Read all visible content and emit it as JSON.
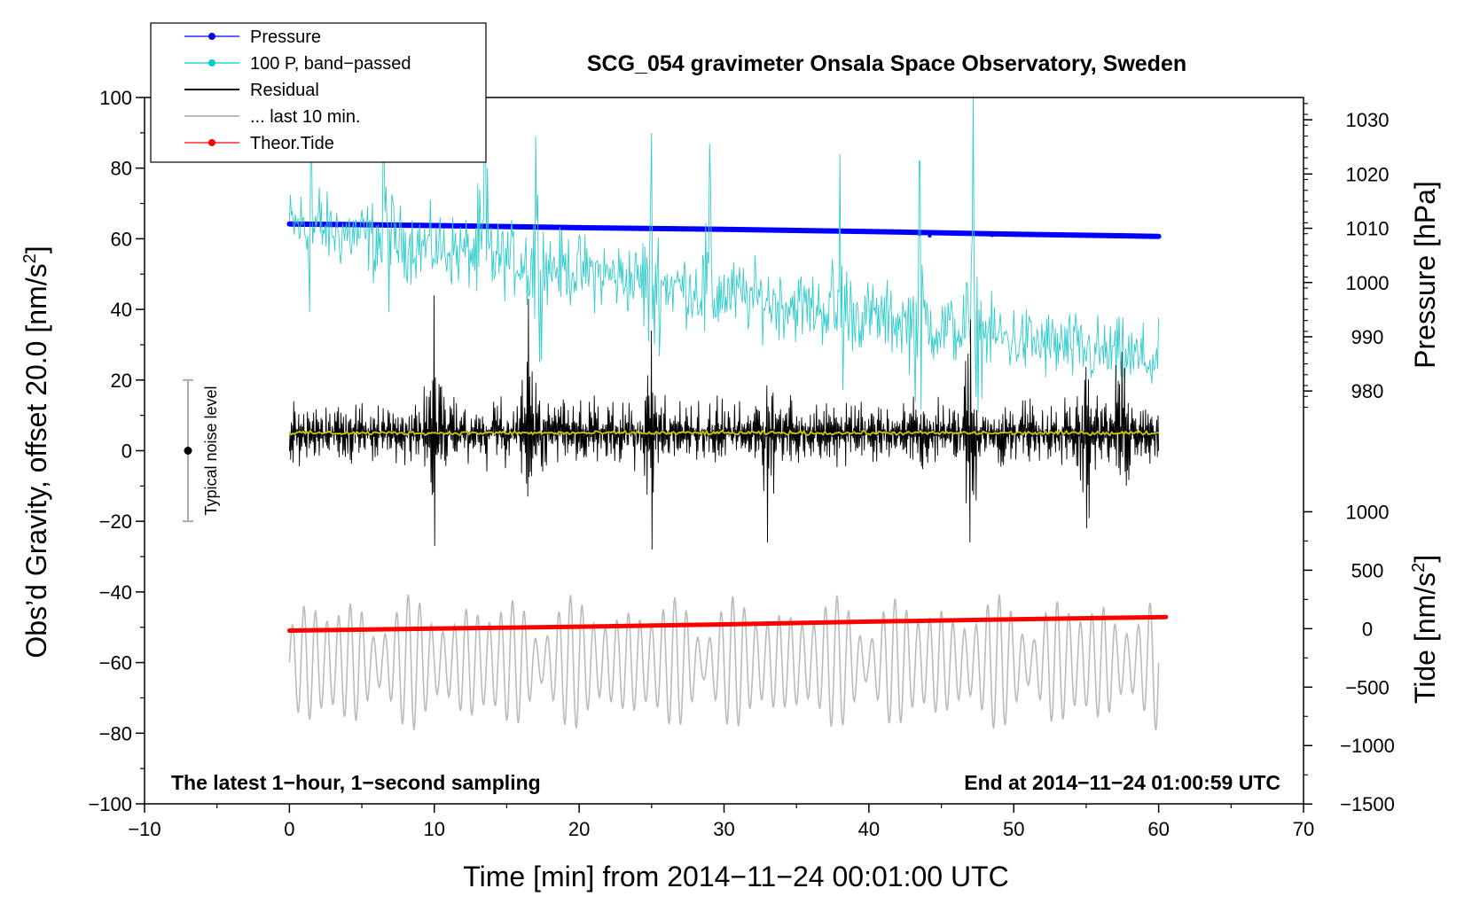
{
  "chart_data": {
    "type": "line",
    "title": "SCG_054 gravimeter Onsala Space Observatory, Sweden",
    "xlabel": "Time [min] from 2014−11−24 00:01:00 UTC",
    "ylabel_left": "Obs’d Gravity, offset 20.0 [nm/s",
    "ylabel_left_sup": "2",
    "ylabel_left_end": "]",
    "ylabel_right_top": "Pressure [hPa]",
    "ylabel_right_bottom": "Tide [nm/s",
    "ylabel_right_bottom_sup": "2",
    "ylabel_right_bottom_end": "]",
    "xlim": [
      -10,
      70
    ],
    "ylim": [
      -100,
      100
    ],
    "x_ticks": [
      -10,
      0,
      10,
      20,
      30,
      40,
      50,
      60,
      70
    ],
    "x_tick_labels": [
      "−10",
      "0",
      "10",
      "20",
      "30",
      "40",
      "50",
      "60",
      "70"
    ],
    "y_ticks": [
      -100,
      -80,
      -60,
      -40,
      -20,
      0,
      20,
      40,
      60,
      80,
      100
    ],
    "y_tick_labels": [
      "−100",
      "−80",
      "−60",
      "−40",
      "−20",
      "0",
      "20",
      "40",
      "60",
      "80",
      "100"
    ],
    "pressure_axis": {
      "ticks": [
        980,
        990,
        1000,
        1010,
        1020,
        1030
      ],
      "tick_labels": [
        "980",
        "990",
        "1000",
        "1010",
        "1020",
        "1030"
      ],
      "left_value_at_980": 16.9,
      "left_per_hpa": 1.5357
    },
    "tide_axis": {
      "ticks": [
        1000,
        500,
        0,
        -500,
        -1000,
        -1500
      ],
      "tick_labels": [
        "1000",
        "500",
        "0",
        "−500",
        "−1000",
        "−1500"
      ],
      "left_value_at_0": -50.4,
      "left_per_unit": 0.0331
    },
    "legend": {
      "position": "top-left",
      "entries": [
        {
          "label": "Pressure",
          "color": "#0000ff",
          "marker": true
        },
        {
          "label": "100 P, band−passed",
          "color": "#00cccc",
          "marker": true
        },
        {
          "label": "Residual",
          "color": "#000000",
          "marker": false
        },
        {
          "label": "... last 10 min.",
          "color": "#bbbbbb",
          "marker": false
        },
        {
          "label": "Theor.Tide",
          "color": "#ff0000",
          "marker": true
        }
      ]
    },
    "annotations": {
      "left_note": "The latest 1−hour, 1−second sampling",
      "right_note": "End at 2014−11−24 01:00:59 UTC",
      "noise_label": "Typical noise level",
      "noise_x": -7,
      "noise_center": 0,
      "noise_half_range": 20
    },
    "series": [
      {
        "name": "Pressure",
        "color": "#0000ff",
        "unit": "hPa",
        "x": [
          0,
          10,
          20,
          30,
          40,
          50,
          60
        ],
        "values": [
          1010.8,
          1010.5,
          1010.1,
          1009.8,
          1009.4,
          1008.9,
          1008.5
        ]
      },
      {
        "name": "100 P, band−passed",
        "color": "#33cccc",
        "x": [
          0,
          60
        ],
        "center": [
          64,
          25
        ],
        "amplitude": 15,
        "peaks": [
          [
            1.5,
            88
          ],
          [
            6.5,
            86
          ],
          [
            13.5,
            95
          ],
          [
            17,
            89
          ],
          [
            25,
            90
          ],
          [
            29,
            87
          ],
          [
            38,
            84
          ],
          [
            43.5,
            82
          ],
          [
            47.2,
            100
          ]
        ]
      },
      {
        "name": "Residual",
        "color": "#000000",
        "x": [
          0,
          60
        ],
        "center": 5,
        "amplitude": 8,
        "peaks": [
          [
            10,
            44
          ],
          [
            16.5,
            43
          ],
          [
            25,
            34
          ],
          [
            33,
            31
          ],
          [
            47,
            37
          ],
          [
            57.5,
            28
          ]
        ],
        "troughs": [
          [
            10,
            -27
          ],
          [
            16.5,
            -30
          ],
          [
            25,
            -28
          ],
          [
            33,
            -26
          ],
          [
            47,
            -26
          ],
          [
            55,
            -22
          ]
        ]
      },
      {
        "name": "Residual mean",
        "color": "#cccc00",
        "x": [
          0,
          60
        ],
        "center": 5
      },
      {
        "name": "... last 10 min.",
        "color": "#bbbbbb",
        "x": [
          0,
          60
        ],
        "center": -60,
        "amplitude": 12,
        "peaks": [
          [
            3,
            -34
          ],
          [
            4.5,
            -37
          ],
          [
            21,
            -38
          ],
          [
            23,
            -38
          ],
          [
            25,
            -38
          ],
          [
            51.5,
            -38
          ]
        ],
        "troughs": [
          [
            3,
            -89
          ],
          [
            4.5,
            -87
          ],
          [
            21.5,
            -79
          ],
          [
            25.5,
            -78
          ],
          [
            33,
            -78
          ],
          [
            38,
            -78
          ],
          [
            53.5,
            -80
          ],
          [
            57,
            -79
          ]
        ]
      },
      {
        "name": "Theor.Tide",
        "color": "#ff0000",
        "unit": "nm/s2",
        "x": [
          0,
          10,
          20,
          30,
          40,
          50,
          60.5
        ],
        "values": [
          -16,
          0,
          17,
          37,
          60,
          80,
          100
        ]
      }
    ]
  }
}
